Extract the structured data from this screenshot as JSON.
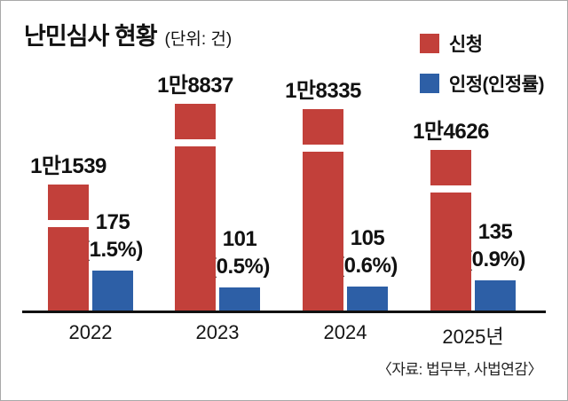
{
  "chart_data": {
    "type": "bar",
    "title": "난민심사 현황",
    "unit_label": "(단위: 건)",
    "categories": [
      "2022",
      "2023",
      "2024",
      "2025년"
    ],
    "series": [
      {
        "name": "신청",
        "color": "#c2403a",
        "values": [
          11539,
          18837,
          18335,
          14626
        ],
        "value_labels": [
          "1만1539",
          "1만8837",
          "1만8335",
          "1만4626"
        ]
      },
      {
        "name": "인정(인정률)",
        "color": "#2d5fa6",
        "values": [
          175,
          101,
          105,
          135
        ],
        "value_labels": [
          "175",
          "101",
          "105",
          "135"
        ],
        "rate_labels": [
          "(1.5%)",
          "(0.5%)",
          "(0.6%)",
          "(0.9%)"
        ]
      }
    ],
    "source": "〈자료: 법무부, 사법연감〉",
    "layout": {
      "legend_position": "top-right",
      "axis_break_on_apply_bars": true,
      "grid": false,
      "ylim": [
        0,
        18837
      ]
    }
  }
}
